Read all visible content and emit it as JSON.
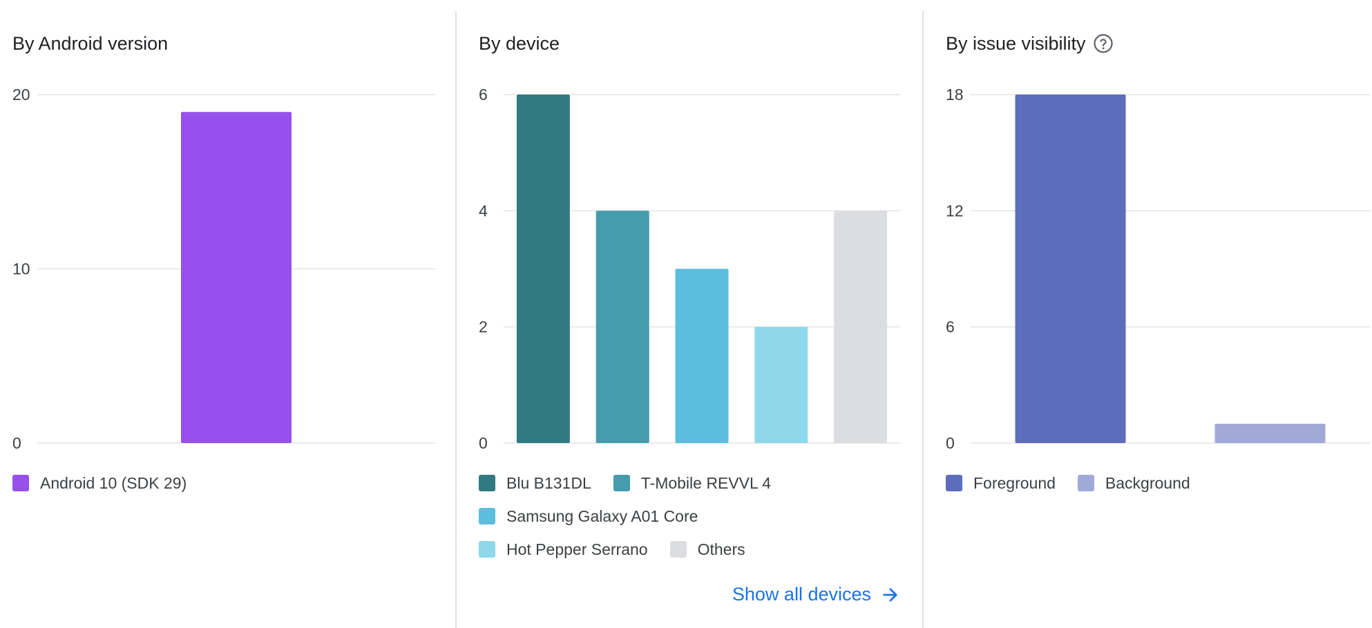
{
  "panels": {
    "android": {
      "title": "By Android version",
      "legend": [
        {
          "label": "Android 10 (SDK 29)",
          "color": "#9650eb"
        }
      ]
    },
    "device": {
      "title": "By device",
      "legend_rows": [
        [
          {
            "label": "Blu B131DL",
            "color": "#327a82"
          },
          {
            "label": "T-Mobile REVVL 4",
            "color": "#459cac"
          }
        ],
        [
          {
            "label": "Samsung Galaxy A01 Core",
            "color": "#5bbedd"
          }
        ],
        [
          {
            "label": "Hot Pepper Serrano",
            "color": "#8fd8ea"
          },
          {
            "label": "Others",
            "color": "#dcdde0"
          }
        ]
      ],
      "show_all_label": "Show all devices",
      "show_all_icon": "arrow-right-icon"
    },
    "visibility": {
      "title": "By issue visibility",
      "help_icon": "help-circle-icon",
      "legend": [
        {
          "label": "Foreground",
          "color": "#5e6dbb"
        },
        {
          "label": "Background",
          "color": "#a1a9d8"
        }
      ]
    }
  },
  "chart_data": [
    {
      "type": "bar",
      "title": "By Android version",
      "categories": [
        "Android 10 (SDK 29)"
      ],
      "values": [
        19
      ],
      "colors": [
        "#9650eb"
      ],
      "ylim": [
        0,
        20
      ],
      "yticks": [
        0,
        10,
        20
      ],
      "grid": true,
      "legend": "bottom"
    },
    {
      "type": "bar",
      "title": "By device",
      "categories": [
        "Blu B131DL",
        "T-Mobile REVVL 4",
        "Samsung Galaxy A01 Core",
        "Hot Pepper Serrano",
        "Others"
      ],
      "values": [
        6,
        4,
        3,
        2,
        4
      ],
      "colors": [
        "#327a82",
        "#459cac",
        "#5bbedd",
        "#8fd8ea",
        "#dcdde0"
      ],
      "ylim": [
        0,
        6
      ],
      "yticks": [
        0,
        2,
        4,
        6
      ],
      "grid": true,
      "legend": "bottom"
    },
    {
      "type": "bar",
      "title": "By issue visibility",
      "categories": [
        "Foreground",
        "Background"
      ],
      "values": [
        18,
        1
      ],
      "colors": [
        "#5e6dbb",
        "#a1a9d8"
      ],
      "ylim": [
        0,
        18
      ],
      "yticks": [
        0,
        6,
        12,
        18
      ],
      "grid": true,
      "legend": "bottom"
    }
  ]
}
